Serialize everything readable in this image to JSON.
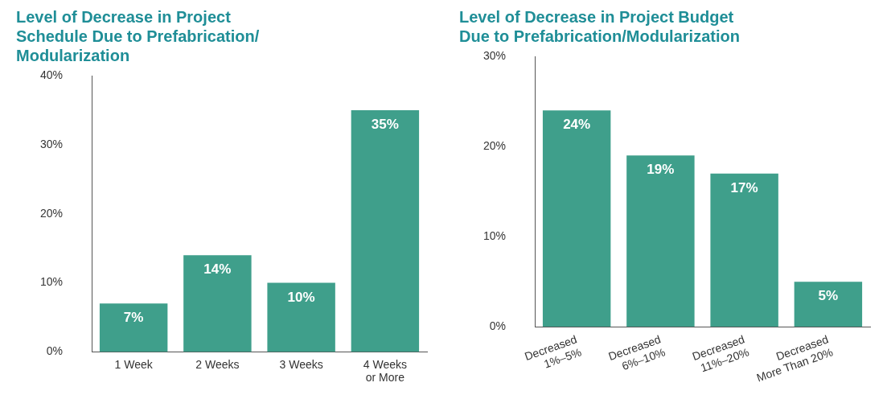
{
  "chart_data": [
    {
      "type": "bar",
      "title": "Level of Decrease in Project\nSchedule Due to Prefabrication/\nModularization",
      "categories": [
        "1 Week",
        "2 Weeks",
        "3 Weeks",
        "4 Weeks\nor More"
      ],
      "values": [
        7,
        14,
        10,
        35
      ],
      "color": "#3f9f8b",
      "ylim": [
        0,
        40
      ],
      "yticks": [
        {
          "value": 0,
          "label": "0%"
        },
        {
          "value": 10,
          "label": "10%"
        },
        {
          "value": 20,
          "label": "20%"
        },
        {
          "value": 30,
          "label": "30%"
        },
        {
          "value": 40,
          "label": "40%"
        }
      ],
      "value_labels": [
        "7%",
        "14%",
        "10%",
        "35%"
      ],
      "grid": false,
      "legend": false
    },
    {
      "type": "bar",
      "title": "Level of Decrease in Project Budget\nDue to Prefabrication/Modularization",
      "categories": [
        "Decreased\n1%–5%",
        "Decreased\n6%–10%",
        "Decreased\n11%–20%",
        "Decreased\nMore Than 20%"
      ],
      "values": [
        24,
        19,
        17,
        5
      ],
      "color": "#3f9f8b",
      "ylim": [
        0,
        30
      ],
      "yticks": [
        {
          "value": 0,
          "label": "0%"
        },
        {
          "value": 10,
          "label": "10%"
        },
        {
          "value": 20,
          "label": "20%"
        },
        {
          "value": 30,
          "label": "30%"
        }
      ],
      "value_labels": [
        "24%",
        "19%",
        "17%",
        "5%"
      ],
      "grid": false,
      "legend": false
    }
  ]
}
